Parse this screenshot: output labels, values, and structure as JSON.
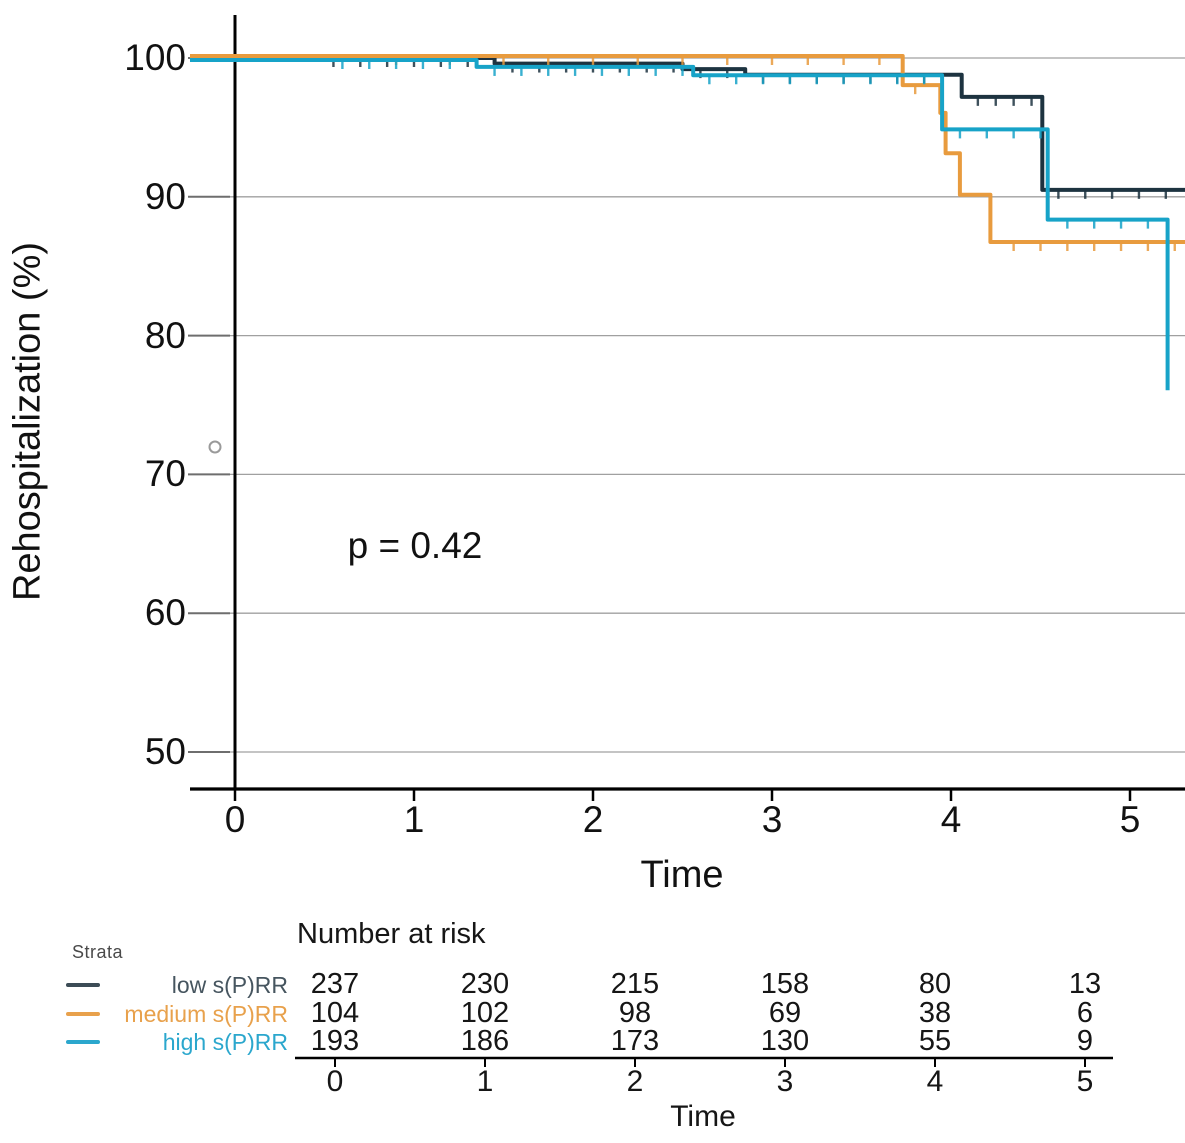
{
  "chart_data": {
    "type": "line",
    "subtype": "kaplan-meier-step",
    "title": "",
    "xlabel": "Time",
    "ylabel": "Rehospitalization (%)",
    "annotation": "p = 0.42",
    "xlim": [
      0,
      5.31
    ],
    "ylim": [
      47.5,
      103
    ],
    "grid": true,
    "x_ticks": [
      "0",
      "1",
      "2",
      "3",
      "4",
      "5"
    ],
    "x_tick_values": [
      0,
      1,
      2,
      3,
      4,
      5
    ],
    "y_ticks": [
      "100",
      "90",
      "80",
      "70",
      "60",
      "50"
    ],
    "y_tick_values": [
      100,
      90,
      80,
      70,
      60,
      50
    ],
    "series": [
      {
        "name": "low s(P)RR",
        "color": "#1d3340",
        "start_pct": 100,
        "end_t": 5.31,
        "y_offset": 0,
        "drops": [
          [
            1.45,
            99.6
          ],
          [
            2.5,
            99.2
          ],
          [
            2.85,
            98.8
          ],
          [
            4.06,
            97.2
          ],
          [
            4.51,
            90.5
          ]
        ],
        "censors": [
          [
            0.55,
            100
          ],
          [
            0.7,
            100
          ],
          [
            0.85,
            100
          ],
          [
            1.0,
            100
          ],
          [
            1.15,
            100
          ],
          [
            1.3,
            100
          ],
          [
            1.55,
            99.6
          ],
          [
            1.7,
            99.6
          ],
          [
            1.85,
            99.6
          ],
          [
            2.0,
            99.6
          ],
          [
            2.15,
            99.6
          ],
          [
            2.3,
            99.6
          ],
          [
            2.45,
            99.6
          ],
          [
            2.6,
            99.2
          ],
          [
            2.75,
            99.2
          ],
          [
            2.95,
            98.8
          ],
          [
            3.1,
            98.8
          ],
          [
            3.25,
            98.8
          ],
          [
            3.4,
            98.8
          ],
          [
            3.55,
            98.8
          ],
          [
            3.7,
            98.8
          ],
          [
            3.85,
            98.8
          ],
          [
            4.15,
            97.2
          ],
          [
            4.25,
            97.2
          ],
          [
            4.35,
            97.2
          ],
          [
            4.45,
            97.2
          ],
          [
            4.6,
            90.5
          ],
          [
            4.75,
            90.5
          ],
          [
            4.9,
            90.5
          ],
          [
            5.05,
            90.5
          ],
          [
            5.2,
            90.5
          ]
        ]
      },
      {
        "name": "medium s(P)RR",
        "color": "#e89b3e",
        "start_pct": 100,
        "end_t": 5.31,
        "y_offset": -2,
        "drops": [
          [
            3.73,
            97.9
          ],
          [
            3.94,
            95.9
          ],
          [
            3.97,
            93.0
          ],
          [
            4.05,
            90.0
          ],
          [
            4.22,
            86.6
          ]
        ],
        "censors": [
          [
            0.9,
            100
          ],
          [
            1.2,
            100
          ],
          [
            1.5,
            100
          ],
          [
            1.75,
            100
          ],
          [
            2.0,
            100
          ],
          [
            2.25,
            100
          ],
          [
            2.5,
            100
          ],
          [
            2.75,
            100
          ],
          [
            3.0,
            100
          ],
          [
            3.2,
            100
          ],
          [
            3.4,
            100
          ],
          [
            3.6,
            100
          ],
          [
            3.8,
            97.9
          ],
          [
            4.35,
            86.6
          ],
          [
            4.5,
            86.6
          ],
          [
            4.65,
            86.6
          ],
          [
            4.8,
            86.6
          ],
          [
            4.95,
            86.6
          ],
          [
            5.1,
            86.6
          ],
          [
            5.25,
            86.6
          ]
        ]
      },
      {
        "name": "high s(P)RR",
        "color": "#17a3c8",
        "start_pct": 100,
        "end_t": 5.21,
        "y_offset": 2,
        "drops": [
          [
            1.35,
            99.5
          ],
          [
            2.56,
            98.9
          ],
          [
            3.95,
            95.0
          ],
          [
            4.54,
            88.5
          ],
          [
            5.21,
            76.2
          ]
        ],
        "censors": [
          [
            0.6,
            100
          ],
          [
            0.75,
            100
          ],
          [
            0.9,
            100
          ],
          [
            1.05,
            100
          ],
          [
            1.2,
            100
          ],
          [
            1.45,
            99.5
          ],
          [
            1.6,
            99.5
          ],
          [
            1.75,
            99.5
          ],
          [
            1.9,
            99.5
          ],
          [
            2.05,
            99.5
          ],
          [
            2.2,
            99.5
          ],
          [
            2.35,
            99.5
          ],
          [
            2.5,
            99.5
          ],
          [
            2.65,
            98.9
          ],
          [
            2.8,
            98.9
          ],
          [
            2.95,
            98.9
          ],
          [
            3.1,
            98.9
          ],
          [
            3.25,
            98.9
          ],
          [
            3.4,
            98.9
          ],
          [
            3.55,
            98.9
          ],
          [
            3.7,
            98.9
          ],
          [
            3.85,
            98.9
          ],
          [
            4.05,
            95.0
          ],
          [
            4.2,
            95.0
          ],
          [
            4.35,
            95.0
          ],
          [
            4.5,
            95.0
          ],
          [
            4.65,
            88.5
          ],
          [
            4.8,
            88.5
          ],
          [
            4.95,
            88.5
          ],
          [
            5.1,
            88.5
          ]
        ]
      }
    ],
    "outlier_marker": {
      "x": 215,
      "y": 447
    }
  },
  "risk_table": {
    "title": "Number at risk",
    "strata_label": "Strata",
    "time_label": "Time",
    "time_ticks": [
      "0",
      "1",
      "2",
      "3",
      "4",
      "5"
    ],
    "rows": [
      {
        "label": "low s(P)RR",
        "text_color": "#46555f",
        "dash_color": "#3c4c56",
        "counts": [
          "237",
          "230",
          "215",
          "158",
          "80",
          "13"
        ]
      },
      {
        "label": "medium s(P)RR",
        "text_color": "#e8a14c",
        "dash_color": "#e8a14c",
        "counts": [
          "104",
          "102",
          "98",
          "69",
          "38",
          "6"
        ]
      },
      {
        "label": "high s(P)RR",
        "text_color": "#2ba7cd",
        "dash_color": "#2ba7cd",
        "counts": [
          "193",
          "186",
          "173",
          "130",
          "55",
          "9"
        ]
      }
    ]
  },
  "colors": {
    "axis": "#000000",
    "gridline": "#a0a0a0",
    "tick_text": "#111111",
    "marker": "#9a9a9a"
  }
}
